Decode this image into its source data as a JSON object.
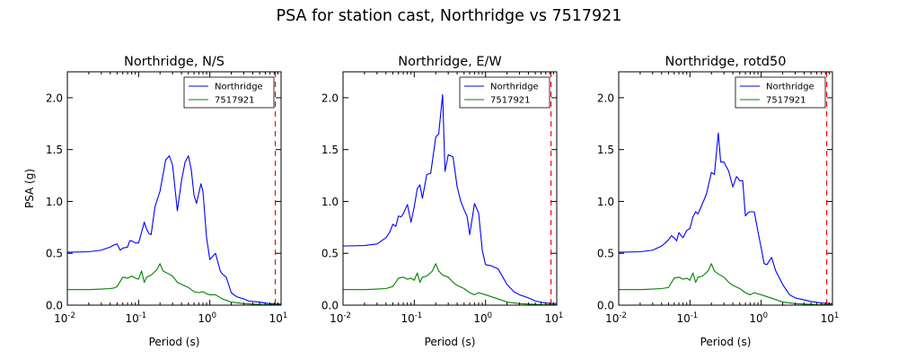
{
  "figure_title": "PSA for station cast, Northridge vs 7517921",
  "chart_data": [
    {
      "type": "line",
      "title": "Northridge, N/S",
      "xlabel": "Period (s)",
      "ylabel": "PSA (g)",
      "xscale": "log",
      "xlim": [
        0.01,
        10
      ],
      "ylim": [
        0,
        2.25
      ],
      "xticks": [
        0.01,
        0.1,
        1,
        10
      ],
      "yticks": [
        0.0,
        0.5,
        1.0,
        1.5,
        2.0
      ],
      "xtick_labels": [
        "10-2",
        "10-1",
        "100",
        "101"
      ],
      "ytick_labels": [
        "0.0",
        "0.5",
        "1.0",
        "1.5",
        "2.0"
      ],
      "legend": "top-right",
      "cutoff_period": 8.3,
      "series": [
        {
          "name": "Northridge",
          "color": "#0000ff",
          "x": [
            0.01,
            0.02,
            0.03,
            0.04,
            0.045,
            0.05,
            0.055,
            0.06,
            0.07,
            0.075,
            0.08,
            0.09,
            0.1,
            0.11,
            0.12,
            0.13,
            0.14,
            0.15,
            0.17,
            0.2,
            0.24,
            0.27,
            0.3,
            0.35,
            0.4,
            0.45,
            0.5,
            0.55,
            0.6,
            0.65,
            0.75,
            0.8,
            0.9,
            1.0,
            1.2,
            1.4,
            1.5,
            1.7,
            2.0,
            2.4,
            3.0,
            3.5,
            4.0,
            5.0,
            6.0,
            7.0,
            8.0,
            10.0
          ],
          "y": [
            0.51,
            0.515,
            0.53,
            0.56,
            0.58,
            0.59,
            0.53,
            0.55,
            0.56,
            0.62,
            0.62,
            0.6,
            0.6,
            0.7,
            0.8,
            0.73,
            0.69,
            0.68,
            0.95,
            1.1,
            1.4,
            1.44,
            1.35,
            0.91,
            1.2,
            1.38,
            1.44,
            1.3,
            1.06,
            0.98,
            1.17,
            1.1,
            0.65,
            0.44,
            0.5,
            0.33,
            0.3,
            0.27,
            0.12,
            0.08,
            0.06,
            0.04,
            0.035,
            0.03,
            0.02,
            0.015,
            0.01,
            0.01
          ]
        },
        {
          "name": "7517921",
          "color": "#008000",
          "x": [
            0.01,
            0.02,
            0.03,
            0.04,
            0.045,
            0.05,
            0.06,
            0.07,
            0.08,
            0.09,
            0.1,
            0.11,
            0.12,
            0.13,
            0.15,
            0.18,
            0.2,
            0.22,
            0.25,
            0.3,
            0.35,
            0.4,
            0.5,
            0.6,
            0.7,
            0.8,
            0.9,
            1.0,
            1.2,
            1.5,
            2.0,
            3.0,
            4.0,
            6.0,
            10.0
          ],
          "y": [
            0.15,
            0.15,
            0.155,
            0.16,
            0.165,
            0.18,
            0.27,
            0.26,
            0.28,
            0.26,
            0.25,
            0.33,
            0.22,
            0.27,
            0.29,
            0.34,
            0.4,
            0.33,
            0.31,
            0.28,
            0.22,
            0.2,
            0.17,
            0.13,
            0.12,
            0.13,
            0.11,
            0.1,
            0.1,
            0.06,
            0.03,
            0.015,
            0.01,
            0.005,
            0.003
          ]
        }
      ]
    },
    {
      "type": "line",
      "title": "Northridge, E/W",
      "xlabel": "Period (s)",
      "ylabel": "",
      "xscale": "log",
      "xlim": [
        0.01,
        10
      ],
      "ylim": [
        0,
        2.25
      ],
      "xticks": [
        0.01,
        0.1,
        1,
        10
      ],
      "yticks": [
        0.0,
        0.5,
        1.0,
        1.5,
        2.0
      ],
      "xtick_labels": [
        "10-2",
        "10-1",
        "100",
        "101"
      ],
      "ytick_labels": [
        "0.0",
        "0.5",
        "1.0",
        "1.5",
        "2.0"
      ],
      "legend": "top-right",
      "cutoff_period": 8.3,
      "series": [
        {
          "name": "Northridge",
          "color": "#0000ff",
          "x": [
            0.01,
            0.02,
            0.03,
            0.04,
            0.045,
            0.05,
            0.055,
            0.06,
            0.065,
            0.07,
            0.08,
            0.09,
            0.1,
            0.11,
            0.12,
            0.13,
            0.15,
            0.17,
            0.2,
            0.22,
            0.25,
            0.27,
            0.3,
            0.35,
            0.4,
            0.45,
            0.5,
            0.55,
            0.6,
            0.7,
            0.8,
            0.9,
            1.0,
            1.2,
            1.5,
            2.0,
            2.5,
            3.0,
            4.0,
            5.0,
            7.0,
            10.0
          ],
          "y": [
            0.57,
            0.575,
            0.59,
            0.65,
            0.7,
            0.78,
            0.76,
            0.86,
            0.85,
            0.88,
            0.97,
            0.8,
            0.95,
            1.12,
            1.16,
            1.03,
            1.26,
            1.27,
            1.62,
            1.65,
            2.03,
            1.29,
            1.45,
            1.43,
            1.14,
            1.0,
            0.92,
            0.86,
            0.68,
            0.98,
            0.89,
            0.53,
            0.39,
            0.38,
            0.35,
            0.2,
            0.13,
            0.1,
            0.07,
            0.04,
            0.02,
            0.015
          ]
        },
        {
          "name": "7517921",
          "color": "#008000",
          "x": [
            0.01,
            0.02,
            0.03,
            0.04,
            0.05,
            0.06,
            0.07,
            0.08,
            0.09,
            0.1,
            0.11,
            0.12,
            0.13,
            0.15,
            0.18,
            0.2,
            0.22,
            0.25,
            0.3,
            0.35,
            0.4,
            0.5,
            0.6,
            0.7,
            0.8,
            1.0,
            1.5,
            2.0,
            3.0,
            4.0,
            6.0,
            10.0
          ],
          "y": [
            0.15,
            0.15,
            0.155,
            0.16,
            0.18,
            0.26,
            0.27,
            0.25,
            0.26,
            0.24,
            0.31,
            0.22,
            0.27,
            0.28,
            0.33,
            0.4,
            0.33,
            0.29,
            0.27,
            0.22,
            0.19,
            0.16,
            0.12,
            0.1,
            0.12,
            0.1,
            0.06,
            0.03,
            0.015,
            0.01,
            0.005,
            0.003
          ]
        }
      ]
    },
    {
      "type": "line",
      "title": "Northridge, rotd50",
      "xlabel": "Period (s)",
      "ylabel": "",
      "xscale": "log",
      "xlim": [
        0.01,
        10
      ],
      "ylim": [
        0,
        2.25
      ],
      "xticks": [
        0.01,
        0.1,
        1,
        10
      ],
      "yticks": [
        0.0,
        0.5,
        1.0,
        1.5,
        2.0
      ],
      "xtick_labels": [
        "10-2",
        "10-1",
        "100",
        "101"
      ],
      "ytick_labels": [
        "0.0",
        "0.5",
        "1.0",
        "1.5",
        "2.0"
      ],
      "legend": "top-right",
      "cutoff_period": 8.3,
      "series": [
        {
          "name": "Northridge",
          "color": "#0000ff",
          "x": [
            0.01,
            0.02,
            0.03,
            0.04,
            0.045,
            0.05,
            0.055,
            0.06,
            0.065,
            0.07,
            0.075,
            0.08,
            0.09,
            0.1,
            0.11,
            0.12,
            0.13,
            0.15,
            0.17,
            0.2,
            0.22,
            0.25,
            0.27,
            0.3,
            0.35,
            0.4,
            0.45,
            0.5,
            0.55,
            0.6,
            0.65,
            0.7,
            0.8,
            0.9,
            1.0,
            1.1,
            1.2,
            1.4,
            1.6,
            2.0,
            2.5,
            3.0,
            4.0,
            5.0,
            7.0,
            10.0
          ],
          "y": [
            0.51,
            0.515,
            0.53,
            0.57,
            0.6,
            0.63,
            0.67,
            0.65,
            0.62,
            0.7,
            0.67,
            0.65,
            0.72,
            0.74,
            0.85,
            0.9,
            0.88,
            0.98,
            1.07,
            1.28,
            1.26,
            1.66,
            1.38,
            1.38,
            1.29,
            1.14,
            1.24,
            1.2,
            1.2,
            0.86,
            0.89,
            0.9,
            0.9,
            0.71,
            0.55,
            0.4,
            0.39,
            0.46,
            0.33,
            0.2,
            0.1,
            0.07,
            0.05,
            0.035,
            0.02,
            0.015
          ]
        },
        {
          "name": "7517921",
          "color": "#008000",
          "x": [
            0.01,
            0.02,
            0.03,
            0.04,
            0.05,
            0.06,
            0.07,
            0.08,
            0.09,
            0.1,
            0.11,
            0.12,
            0.13,
            0.15,
            0.18,
            0.2,
            0.22,
            0.25,
            0.3,
            0.35,
            0.4,
            0.5,
            0.6,
            0.7,
            0.8,
            1.0,
            1.5,
            2.0,
            3.0,
            4.0,
            6.0,
            10.0
          ],
          "y": [
            0.15,
            0.15,
            0.155,
            0.16,
            0.17,
            0.26,
            0.27,
            0.25,
            0.26,
            0.24,
            0.31,
            0.22,
            0.27,
            0.28,
            0.33,
            0.4,
            0.33,
            0.3,
            0.27,
            0.22,
            0.19,
            0.16,
            0.12,
            0.1,
            0.12,
            0.1,
            0.06,
            0.03,
            0.015,
            0.01,
            0.005,
            0.003
          ]
        }
      ]
    }
  ]
}
